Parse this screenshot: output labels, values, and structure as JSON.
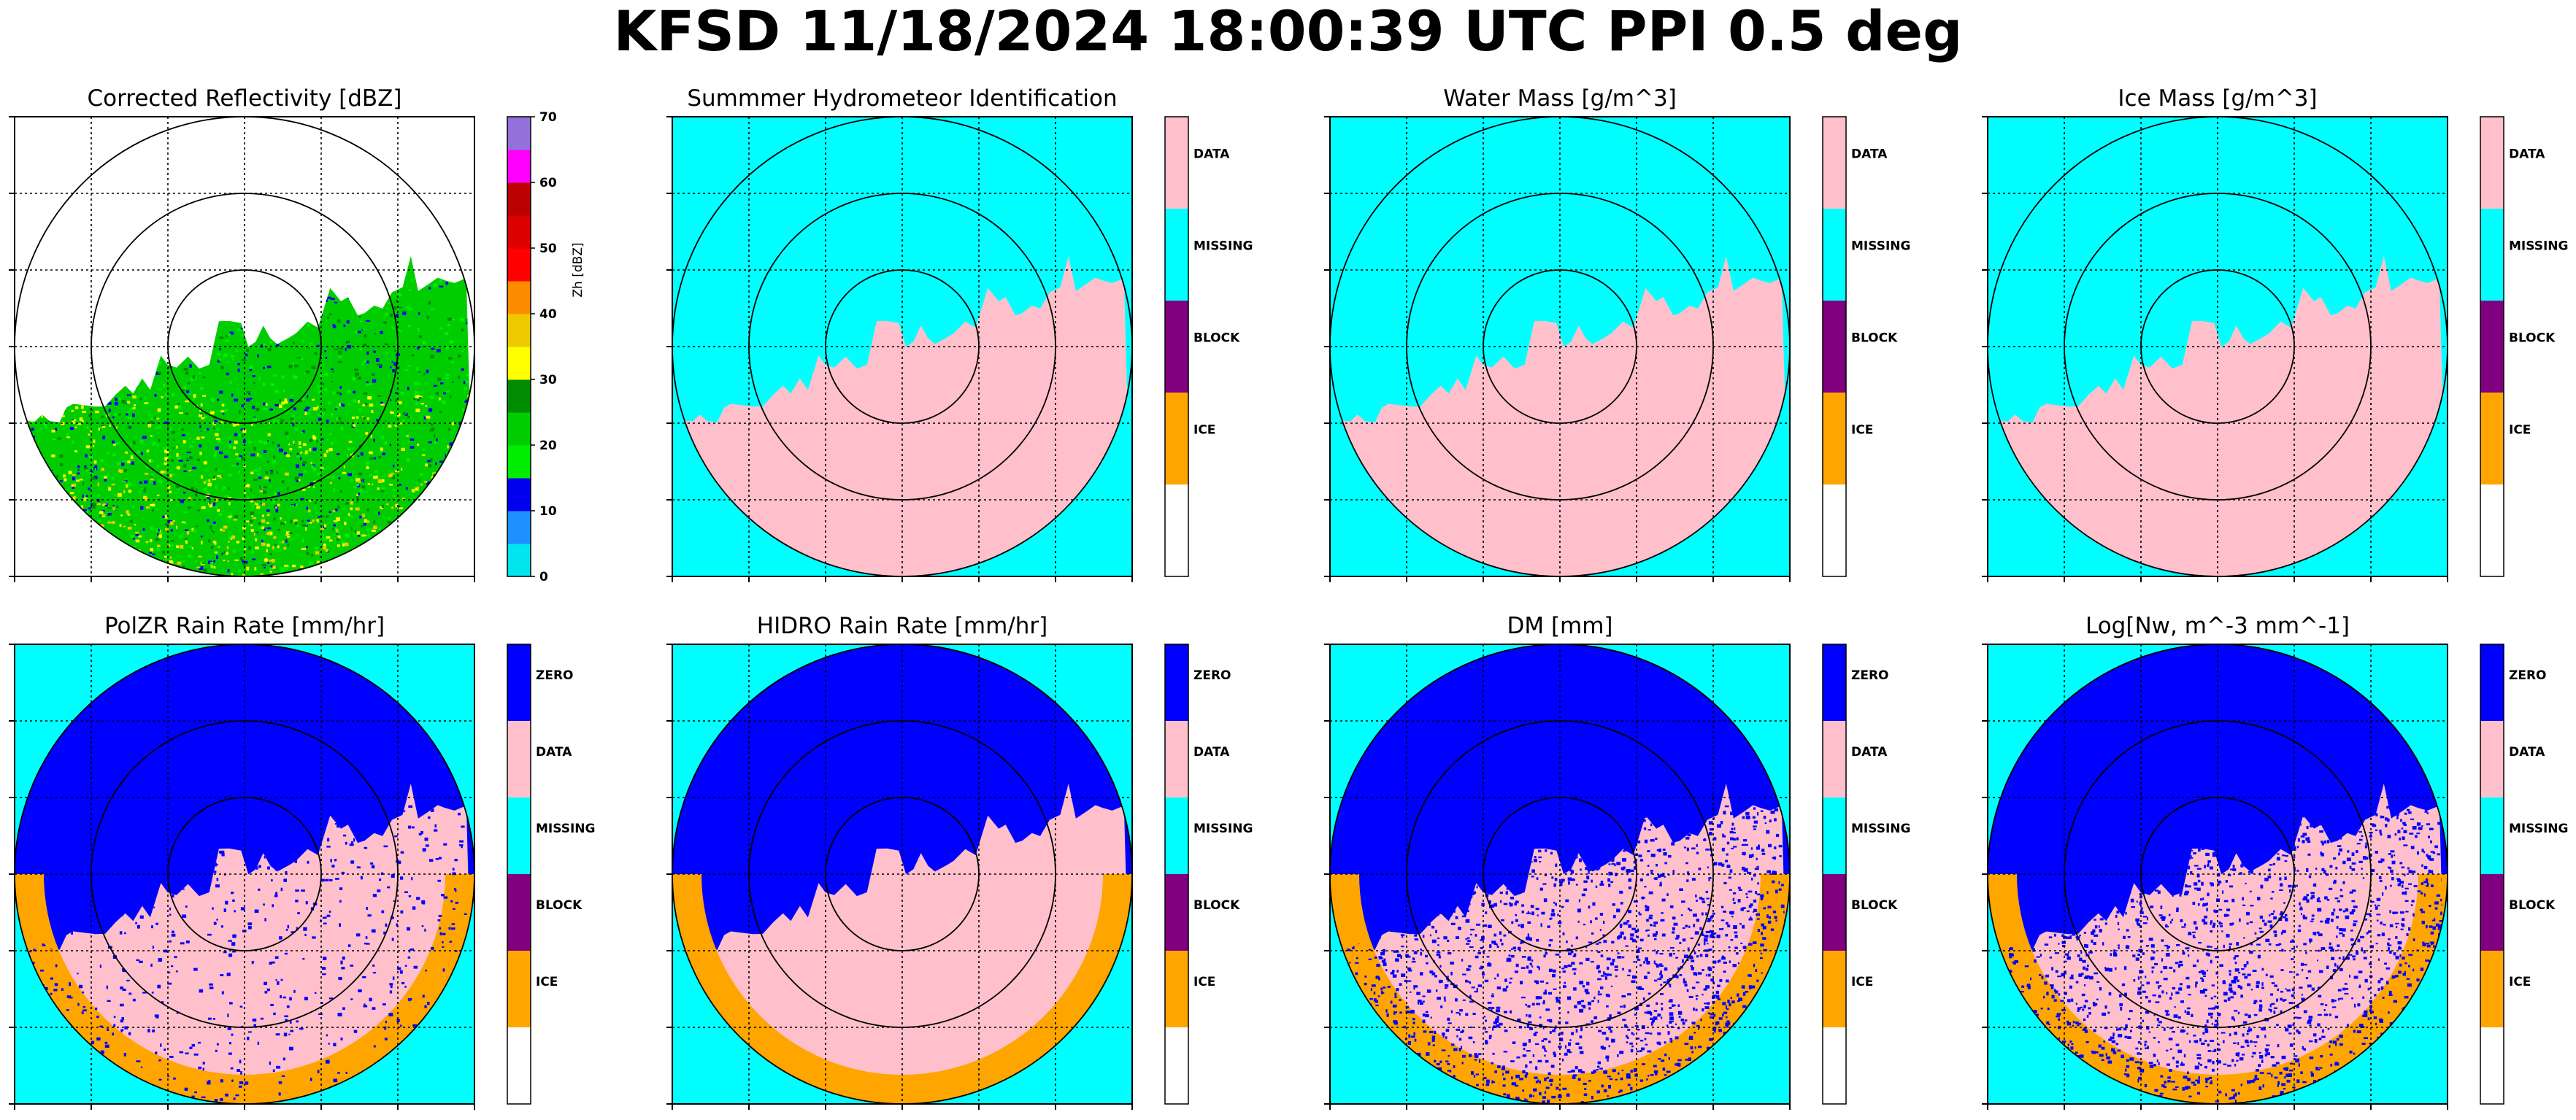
{
  "figure_title": "KFSD 11/18/2024 18:00:39 UTC PPI 0.5 deg",
  "colors": {
    "missing": "#00FFFF",
    "data": "#FFC0CB",
    "zero": "#0000FF",
    "block": "#800080",
    "ice": "#FFA500",
    "none": "#FFFFFF"
  },
  "chart_data": [
    {
      "type": "heatmap",
      "title": "Corrected Reflectivity [dBZ]",
      "colorbar_label": "Zh [dBZ]",
      "colorbar_ticks": [
        "0",
        "10",
        "20",
        "30",
        "40",
        "50",
        "60",
        "70"
      ],
      "colorbar_range": [
        0,
        70
      ],
      "colorbar_colors": [
        "#00E5EE",
        "#1E90FF",
        "#0000EE",
        "#00EE00",
        "#00CD00",
        "#008B00",
        "#FFFF00",
        "#EEC900",
        "#FF8C00",
        "#FF0000",
        "#DD0000",
        "#BB0000",
        "#FF00FF",
        "#9370DB"
      ],
      "range_rings": 3,
      "grid": true
    },
    {
      "type": "heatmap",
      "title": "Summmer Hydrometeor Identification",
      "categories": [
        "DATA",
        "MISSING",
        "BLOCK",
        "ICE",
        ""
      ],
      "category_colors": [
        "#FFC0CB",
        "#00FFFF",
        "#800080",
        "#FFA500",
        "#FFFFFF"
      ],
      "range_rings": 3,
      "grid": true
    },
    {
      "type": "heatmap",
      "title": "Water Mass [g/m^3]",
      "categories": [
        "DATA",
        "MISSING",
        "BLOCK",
        "ICE",
        ""
      ],
      "category_colors": [
        "#FFC0CB",
        "#00FFFF",
        "#800080",
        "#FFA500",
        "#FFFFFF"
      ],
      "range_rings": 3,
      "grid": true
    },
    {
      "type": "heatmap",
      "title": "Ice Mass [g/m^3]",
      "categories": [
        "DATA",
        "MISSING",
        "BLOCK",
        "ICE",
        ""
      ],
      "category_colors": [
        "#FFC0CB",
        "#00FFFF",
        "#800080",
        "#FFA500",
        "#FFFFFF"
      ],
      "range_rings": 3,
      "grid": true
    },
    {
      "type": "heatmap",
      "title": "PolZR Rain Rate [mm/hr]",
      "categories": [
        "ZERO",
        "DATA",
        "MISSING",
        "BLOCK",
        "ICE",
        ""
      ],
      "category_colors": [
        "#0000FF",
        "#FFC0CB",
        "#00FFFF",
        "#800080",
        "#FFA500",
        "#FFFFFF"
      ],
      "range_rings": 3,
      "grid": true
    },
    {
      "type": "heatmap",
      "title": "HIDRO Rain Rate [mm/hr]",
      "categories": [
        "ZERO",
        "DATA",
        "MISSING",
        "BLOCK",
        "ICE",
        ""
      ],
      "category_colors": [
        "#0000FF",
        "#FFC0CB",
        "#00FFFF",
        "#800080",
        "#FFA500",
        "#FFFFFF"
      ],
      "range_rings": 3,
      "grid": true
    },
    {
      "type": "heatmap",
      "title": "DM [mm]",
      "categories": [
        "ZERO",
        "DATA",
        "MISSING",
        "BLOCK",
        "ICE",
        ""
      ],
      "category_colors": [
        "#0000FF",
        "#FFC0CB",
        "#00FFFF",
        "#800080",
        "#FFA500",
        "#FFFFFF"
      ],
      "range_rings": 3,
      "grid": true
    },
    {
      "type": "heatmap",
      "title": "Log[Nw, m^-3 mm^-1]",
      "categories": [
        "ZERO",
        "DATA",
        "MISSING",
        "BLOCK",
        "ICE",
        ""
      ],
      "category_colors": [
        "#0000FF",
        "#FFC0CB",
        "#00FFFF",
        "#800080",
        "#FFA500",
        "#FFFFFF"
      ],
      "range_rings": 3,
      "grid": true
    }
  ]
}
